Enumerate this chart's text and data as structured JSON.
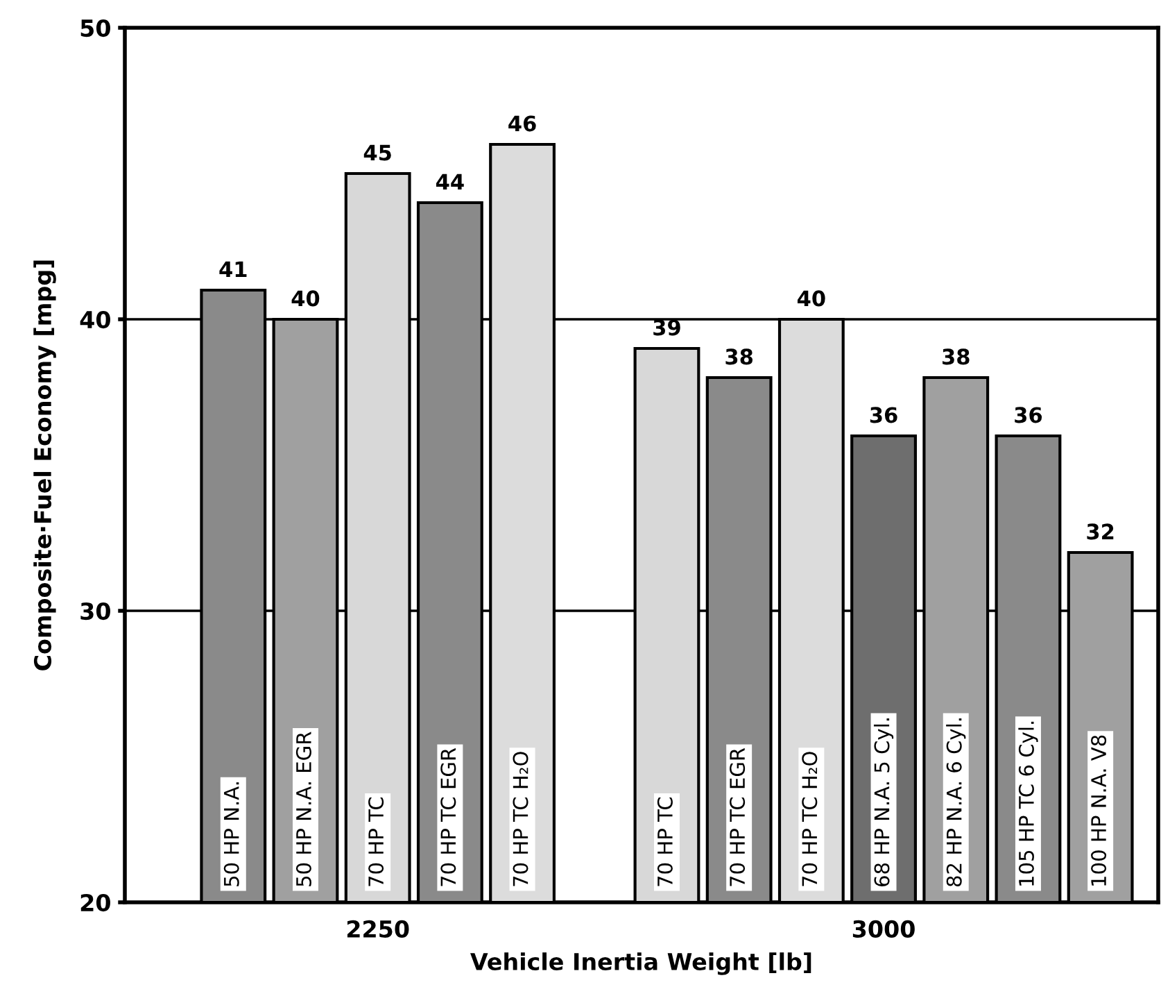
{
  "chart_data": {
    "type": "bar",
    "xlabel": "Vehicle Inertia Weight [lb]",
    "ylabel": "Composite·Fuel Economy [mpg]",
    "categories": [
      "50 HP N.A.",
      "50 HP N.A. EGR",
      "70 HP TC",
      "70 HP TC EGR",
      "70 HP TC H₂O",
      null,
      "70 HP TC",
      "70 HP TC EGR",
      "70 HP TC H₂O",
      "68 HP N.A. 5 Cyl.",
      "82 HP N.A. 6 Cyl.",
      "105 HP TC 6 Cyl.",
      "100 HP N.A. V8"
    ],
    "values": [
      41,
      40,
      45,
      44,
      46,
      null,
      39,
      38,
      40,
      36,
      38,
      36,
      32
    ],
    "colors": [
      "#8a8a8a",
      "#a0a0a0",
      "#d8d8d8",
      "#8a8a8a",
      "#dcdcdc",
      null,
      "#d8d8d8",
      "#8a8a8a",
      "#dcdcdc",
      "#6e6e6e",
      "#a0a0a0",
      "#8a8a8a",
      "#a0a0a0"
    ],
    "ylim": [
      20,
      50
    ],
    "yticks": [
      20,
      30,
      40,
      50
    ],
    "grid": "y",
    "data_labels": true,
    "annotations": [
      "2250",
      "3000"
    ]
  }
}
